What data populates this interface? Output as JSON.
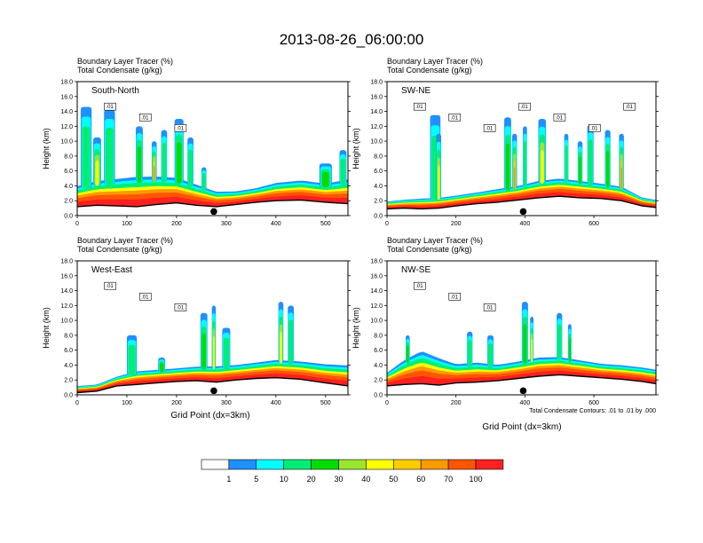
{
  "title": "2013-08-26_06:00:00",
  "header_line1": "Boundary Layer Tracer    (%)",
  "header_line2": "Total Condensate    (g/kg)",
  "ylabel": "Height (km)",
  "xlabel": "Grid Point (dx=3km)",
  "footnote": "Total Condensate Contours: .01 to .01 by .000",
  "colors": {
    "levels": [
      "#ffffff",
      "#1e90ff",
      "#00ffff",
      "#00ee76",
      "#00dd00",
      "#9ae62e",
      "#ffff00",
      "#ffcc00",
      "#ff9900",
      "#ff5500",
      "#ff2020"
    ],
    "terrain": "#000000"
  },
  "chart_data": [
    {
      "type": "heatmap",
      "panel_title": "South-North",
      "x_ticks": [
        "0",
        "100",
        "200",
        "300",
        "400",
        "500"
      ],
      "xlim": [
        0,
        545
      ],
      "ylim": [
        0,
        18
      ],
      "y_ticks": [
        "0.0",
        "2.0",
        "4.0",
        "6.0",
        "8.0",
        "10.0",
        "12.0",
        "14.0",
        "16.0",
        "18.0"
      ],
      "contour_labels": [
        ".01",
        ".01",
        ".01"
      ],
      "marker_x": 275,
      "terrain": [
        [
          0,
          1.2
        ],
        [
          40,
          1.4
        ],
        [
          80,
          1.3
        ],
        [
          120,
          1.2
        ],
        [
          160,
          1.5
        ],
        [
          200,
          1.7
        ],
        [
          240,
          1.4
        ],
        [
          280,
          1.2
        ],
        [
          320,
          1.5
        ],
        [
          360,
          1.8
        ],
        [
          400,
          2.0
        ],
        [
          450,
          2.1
        ],
        [
          500,
          1.8
        ],
        [
          545,
          1.6
        ]
      ],
      "pbl_top": [
        [
          0,
          3.4
        ],
        [
          40,
          4.0
        ],
        [
          80,
          4.2
        ],
        [
          120,
          4.4
        ],
        [
          160,
          4.5
        ],
        [
          200,
          4.4
        ],
        [
          240,
          3.6
        ],
        [
          280,
          2.8
        ],
        [
          320,
          2.9
        ],
        [
          360,
          3.3
        ],
        [
          400,
          3.9
        ],
        [
          450,
          4.2
        ],
        [
          500,
          3.8
        ],
        [
          545,
          4.2
        ]
      ],
      "plumes": [
        {
          "x": 18,
          "w": 22,
          "top": 14.6,
          "cls": "cyan"
        },
        {
          "x": 40,
          "w": 16,
          "top": 10.5,
          "cls": "yellow"
        },
        {
          "x": 65,
          "w": 22,
          "top": 14.2,
          "cls": "cyan"
        },
        {
          "x": 125,
          "w": 14,
          "top": 12.0,
          "cls": "green"
        },
        {
          "x": 155,
          "w": 10,
          "top": 10.0,
          "cls": "orange"
        },
        {
          "x": 175,
          "w": 12,
          "top": 11.5,
          "cls": "cyan"
        },
        {
          "x": 205,
          "w": 18,
          "top": 13.0,
          "cls": "green"
        },
        {
          "x": 228,
          "w": 12,
          "top": 10.5,
          "cls": "cyan"
        },
        {
          "x": 255,
          "w": 10,
          "top": 6.5,
          "cls": "cyan"
        },
        {
          "x": 500,
          "w": 25,
          "top": 7.0,
          "cls": "green"
        },
        {
          "x": 535,
          "w": 14,
          "top": 8.8,
          "cls": "cyan"
        }
      ]
    },
    {
      "type": "heatmap",
      "panel_title": "SW-NE",
      "x_ticks": [
        "0",
        "200",
        "400",
        "600"
      ],
      "xlim": [
        0,
        780
      ],
      "ylim": [
        0,
        18
      ],
      "y_ticks": [
        "0.0",
        "2.0",
        "4.0",
        "6.0",
        "8.0",
        "10.0",
        "12.0",
        "14.0",
        "16.0",
        "18.0"
      ],
      "contour_labels": [
        ".01",
        ".01",
        ".01",
        ".01",
        ".01",
        ".01",
        ".01"
      ],
      "marker_x": 395,
      "terrain": [
        [
          0,
          0.9
        ],
        [
          50,
          1.0
        ],
        [
          100,
          0.9
        ],
        [
          150,
          1.0
        ],
        [
          200,
          1.3
        ],
        [
          260,
          1.6
        ],
        [
          320,
          1.8
        ],
        [
          380,
          2.1
        ],
        [
          440,
          2.4
        ],
        [
          500,
          2.6
        ],
        [
          560,
          2.4
        ],
        [
          620,
          2.3
        ],
        [
          680,
          2.0
        ],
        [
          740,
          1.3
        ],
        [
          780,
          1.1
        ]
      ],
      "pbl_top": [
        [
          0,
          1.7
        ],
        [
          50,
          1.9
        ],
        [
          100,
          2.0
        ],
        [
          150,
          2.1
        ],
        [
          200,
          2.4
        ],
        [
          260,
          2.8
        ],
        [
          320,
          3.2
        ],
        [
          380,
          3.6
        ],
        [
          440,
          4.2
        ],
        [
          500,
          4.5
        ],
        [
          560,
          4.2
        ],
        [
          620,
          3.9
        ],
        [
          680,
          3.5
        ],
        [
          740,
          2.2
        ],
        [
          780,
          1.9
        ]
      ],
      "plumes": [
        {
          "x": 140,
          "w": 30,
          "top": 13.5,
          "cls": "cyan"
        },
        {
          "x": 150,
          "w": 14,
          "top": 11.0,
          "cls": "yellow"
        },
        {
          "x": 350,
          "w": 20,
          "top": 13.2,
          "cls": "green"
        },
        {
          "x": 370,
          "w": 14,
          "top": 11.0,
          "cls": "orange"
        },
        {
          "x": 400,
          "w": 12,
          "top": 12.0,
          "cls": "cyan"
        },
        {
          "x": 450,
          "w": 22,
          "top": 13.0,
          "cls": "yellow"
        },
        {
          "x": 520,
          "w": 12,
          "top": 11.0,
          "cls": "cyan"
        },
        {
          "x": 560,
          "w": 14,
          "top": 10.0,
          "cls": "green"
        },
        {
          "x": 590,
          "w": 18,
          "top": 12.2,
          "cls": "cyan"
        },
        {
          "x": 640,
          "w": 16,
          "top": 11.5,
          "cls": "green"
        },
        {
          "x": 680,
          "w": 14,
          "top": 11.0,
          "cls": "orange"
        }
      ]
    },
    {
      "type": "heatmap",
      "panel_title": "West-East",
      "x_ticks": [
        "0",
        "100",
        "200",
        "300",
        "400",
        "500"
      ],
      "xlim": [
        0,
        545
      ],
      "ylim": [
        0,
        18
      ],
      "y_ticks": [
        "0.0",
        "2.0",
        "4.0",
        "6.0",
        "8.0",
        "10.0",
        "12.0",
        "14.0",
        "16.0",
        "18.0"
      ],
      "contour_labels": [
        ".01",
        ".01",
        ".01"
      ],
      "marker_x": 275,
      "terrain": [
        [
          0,
          0.3
        ],
        [
          40,
          0.5
        ],
        [
          80,
          1.2
        ],
        [
          120,
          1.4
        ],
        [
          160,
          1.6
        ],
        [
          200,
          1.8
        ],
        [
          240,
          1.9
        ],
        [
          280,
          1.7
        ],
        [
          320,
          2.0
        ],
        [
          360,
          2.2
        ],
        [
          400,
          2.3
        ],
        [
          450,
          2.1
        ],
        [
          500,
          1.6
        ],
        [
          545,
          1.2
        ]
      ],
      "pbl_top": [
        [
          0,
          1.0
        ],
        [
          40,
          1.2
        ],
        [
          80,
          2.2
        ],
        [
          120,
          2.8
        ],
        [
          160,
          3.0
        ],
        [
          200,
          3.2
        ],
        [
          240,
          3.4
        ],
        [
          280,
          3.4
        ],
        [
          320,
          3.6
        ],
        [
          360,
          3.9
        ],
        [
          400,
          4.2
        ],
        [
          450,
          4.0
        ],
        [
          500,
          3.6
        ],
        [
          545,
          3.4
        ]
      ],
      "plumes": [
        {
          "x": 110,
          "w": 20,
          "top": 8.0,
          "cls": "cyan"
        },
        {
          "x": 170,
          "w": 14,
          "top": 5.0,
          "cls": "green"
        },
        {
          "x": 255,
          "w": 14,
          "top": 11.0,
          "cls": "green"
        },
        {
          "x": 275,
          "w": 8,
          "top": 12.0,
          "cls": "yellow"
        },
        {
          "x": 300,
          "w": 16,
          "top": 9.0,
          "cls": "cyan"
        },
        {
          "x": 410,
          "w": 10,
          "top": 12.5,
          "cls": "yellow"
        },
        {
          "x": 430,
          "w": 12,
          "top": 12.0,
          "cls": "cyan"
        }
      ]
    },
    {
      "type": "heatmap",
      "panel_title": "NW-SE",
      "x_ticks": [
        "0",
        "200",
        "400",
        "600"
      ],
      "xlim": [
        0,
        780
      ],
      "ylim": [
        0,
        18
      ],
      "y_ticks": [
        "0.0",
        "2.0",
        "4.0",
        "6.0",
        "8.0",
        "10.0",
        "12.0",
        "14.0",
        "16.0",
        "18.0"
      ],
      "contour_labels": [
        ".01",
        ".01",
        ".01"
      ],
      "marker_x": 395,
      "terrain": [
        [
          0,
          1.2
        ],
        [
          50,
          1.4
        ],
        [
          100,
          1.5
        ],
        [
          150,
          1.3
        ],
        [
          200,
          1.6
        ],
        [
          260,
          1.7
        ],
        [
          320,
          1.9
        ],
        [
          380,
          2.2
        ],
        [
          440,
          2.5
        ],
        [
          500,
          2.7
        ],
        [
          560,
          2.5
        ],
        [
          620,
          2.3
        ],
        [
          680,
          2.1
        ],
        [
          740,
          1.8
        ],
        [
          780,
          1.5
        ]
      ],
      "pbl_top": [
        [
          0,
          2.6
        ],
        [
          50,
          4.0
        ],
        [
          100,
          5.0
        ],
        [
          150,
          4.2
        ],
        [
          200,
          3.6
        ],
        [
          260,
          3.8
        ],
        [
          320,
          3.6
        ],
        [
          380,
          4.0
        ],
        [
          440,
          4.5
        ],
        [
          500,
          4.6
        ],
        [
          560,
          4.2
        ],
        [
          620,
          3.8
        ],
        [
          680,
          3.6
        ],
        [
          740,
          3.3
        ],
        [
          780,
          3.0
        ]
      ],
      "plumes": [
        {
          "x": 60,
          "w": 12,
          "top": 8.0,
          "cls": "green"
        },
        {
          "x": 240,
          "w": 16,
          "top": 8.5,
          "cls": "cyan"
        },
        {
          "x": 300,
          "w": 18,
          "top": 8.0,
          "cls": "cyan"
        },
        {
          "x": 400,
          "w": 18,
          "top": 12.5,
          "cls": "green"
        },
        {
          "x": 420,
          "w": 10,
          "top": 10.5,
          "cls": "yellow"
        },
        {
          "x": 500,
          "w": 16,
          "top": 11.0,
          "cls": "cyan"
        },
        {
          "x": 530,
          "w": 10,
          "top": 9.5,
          "cls": "green"
        }
      ]
    }
  ],
  "legend": {
    "labels": [
      "1",
      "5",
      "10",
      "20",
      "30",
      "40",
      "50",
      "60",
      "70",
      "100"
    ]
  }
}
